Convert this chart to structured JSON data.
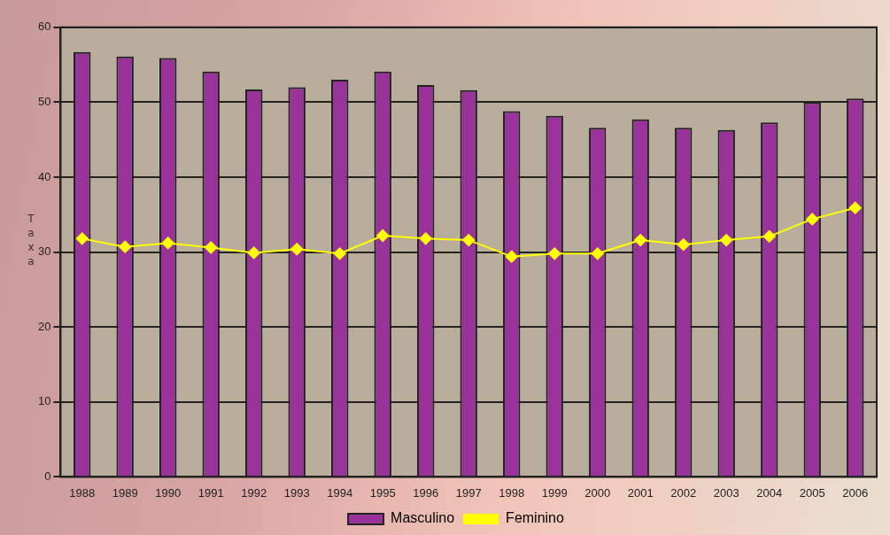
{
  "chart_data": {
    "type": "bar",
    "ylabel": "Taxa",
    "categories": [
      "1988",
      "1989",
      "1990",
      "1991",
      "1992",
      "1993",
      "1994",
      "1995",
      "1996",
      "1997",
      "1998",
      "1999",
      "2000",
      "2001",
      "2002",
      "2003",
      "2004",
      "2005",
      "2006"
    ],
    "series": [
      {
        "name": "Masculino",
        "color": "#993399",
        "values": [
          56.7,
          56.1,
          55.9,
          54.1,
          51.7,
          52.0,
          53.0,
          54.1,
          52.3,
          51.6,
          48.8,
          48.2,
          46.6,
          47.7,
          46.6,
          46.3,
          47.3,
          50.0,
          50.5
        ]
      },
      {
        "name": "Feminino",
        "type": "line",
        "color": "#ffff00",
        "values": [
          31.8,
          30.7,
          31.2,
          30.6,
          29.9,
          30.4,
          29.8,
          32.2,
          31.8,
          31.6,
          29.4,
          29.8,
          29.8,
          31.6,
          31.0,
          31.6,
          32.1,
          34.4,
          35.9
        ]
      }
    ],
    "ylim": [
      0,
      60
    ],
    "yticks": [
      0,
      10,
      20,
      30,
      40,
      50,
      60
    ],
    "grid": "y",
    "legend": "bottom",
    "marker": "diamond"
  }
}
